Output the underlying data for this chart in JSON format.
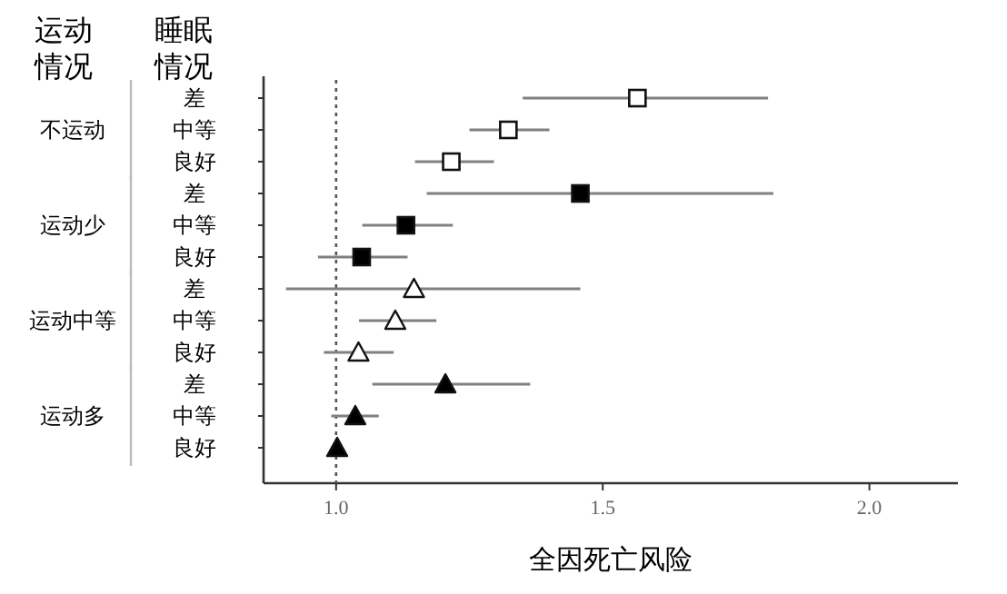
{
  "chart_data": {
    "type": "scatter",
    "orientation": "horizontal",
    "legend_title": "运动情况",
    "ylabel": "睡眠情况",
    "xlabel": "全因死亡风险",
    "annotations": [
      "不运动",
      "运动少",
      "运动中等",
      "运动多"
    ],
    "categories": [
      "差",
      "中等",
      "良好",
      "差",
      "中等",
      "良好",
      "差",
      "中等",
      "良好",
      "差",
      "中等",
      "良好"
    ],
    "series": [
      {
        "color": "#ffffff",
        "marker": "square",
        "values": [
          1.565,
          1.323,
          1.216,
          null,
          null,
          null,
          null,
          null,
          null,
          null,
          null,
          null
        ],
        "errors": [
          [
            1.35,
            1.81
          ],
          [
            1.25,
            1.4
          ],
          [
            1.148,
            1.296
          ],
          null,
          null,
          null,
          null,
          null,
          null,
          null,
          null,
          null
        ]
      },
      {
        "color": "#000000",
        "marker": "square",
        "values": [
          null,
          null,
          null,
          1.458,
          1.131,
          1.048,
          null,
          null,
          null,
          null,
          null,
          null
        ],
        "errors": [
          null,
          null,
          null,
          [
            1.17,
            1.82
          ],
          [
            1.049,
            1.219
          ],
          [
            0.966,
            1.134
          ],
          null,
          null,
          null,
          null,
          null,
          null
        ]
      },
      {
        "color": "#ffffff",
        "marker": "triangle",
        "values": [
          null,
          null,
          null,
          null,
          null,
          null,
          1.146,
          1.111,
          1.042,
          null,
          null,
          null
        ],
        "errors": [
          null,
          null,
          null,
          null,
          null,
          null,
          [
            0.906,
            1.458
          ],
          [
            1.043,
            1.188
          ],
          [
            0.977,
            1.108
          ],
          null,
          null,
          null
        ]
      },
      {
        "color": "#000000",
        "marker": "triangle",
        "values": [
          null,
          null,
          null,
          null,
          null,
          null,
          null,
          null,
          null,
          1.205,
          1.036,
          1.002
        ],
        "errors": [
          null,
          null,
          null,
          null,
          null,
          null,
          null,
          null,
          null,
          [
            1.068,
            1.364
          ],
          [
            0.991,
            1.08
          ],
          null
        ]
      }
    ],
    "xlim": [
      0.864,
      2.166
    ],
    "xticks": [
      {
        "value": 1,
        "label": "1.0"
      },
      {
        "value": 1.5,
        "label": "1.5"
      },
      {
        "value": 2,
        "label": "2.0"
      }
    ],
    "ref_lines": [
      {
        "axis": "x",
        "value": 1,
        "line_style": "dotted"
      }
    ]
  }
}
